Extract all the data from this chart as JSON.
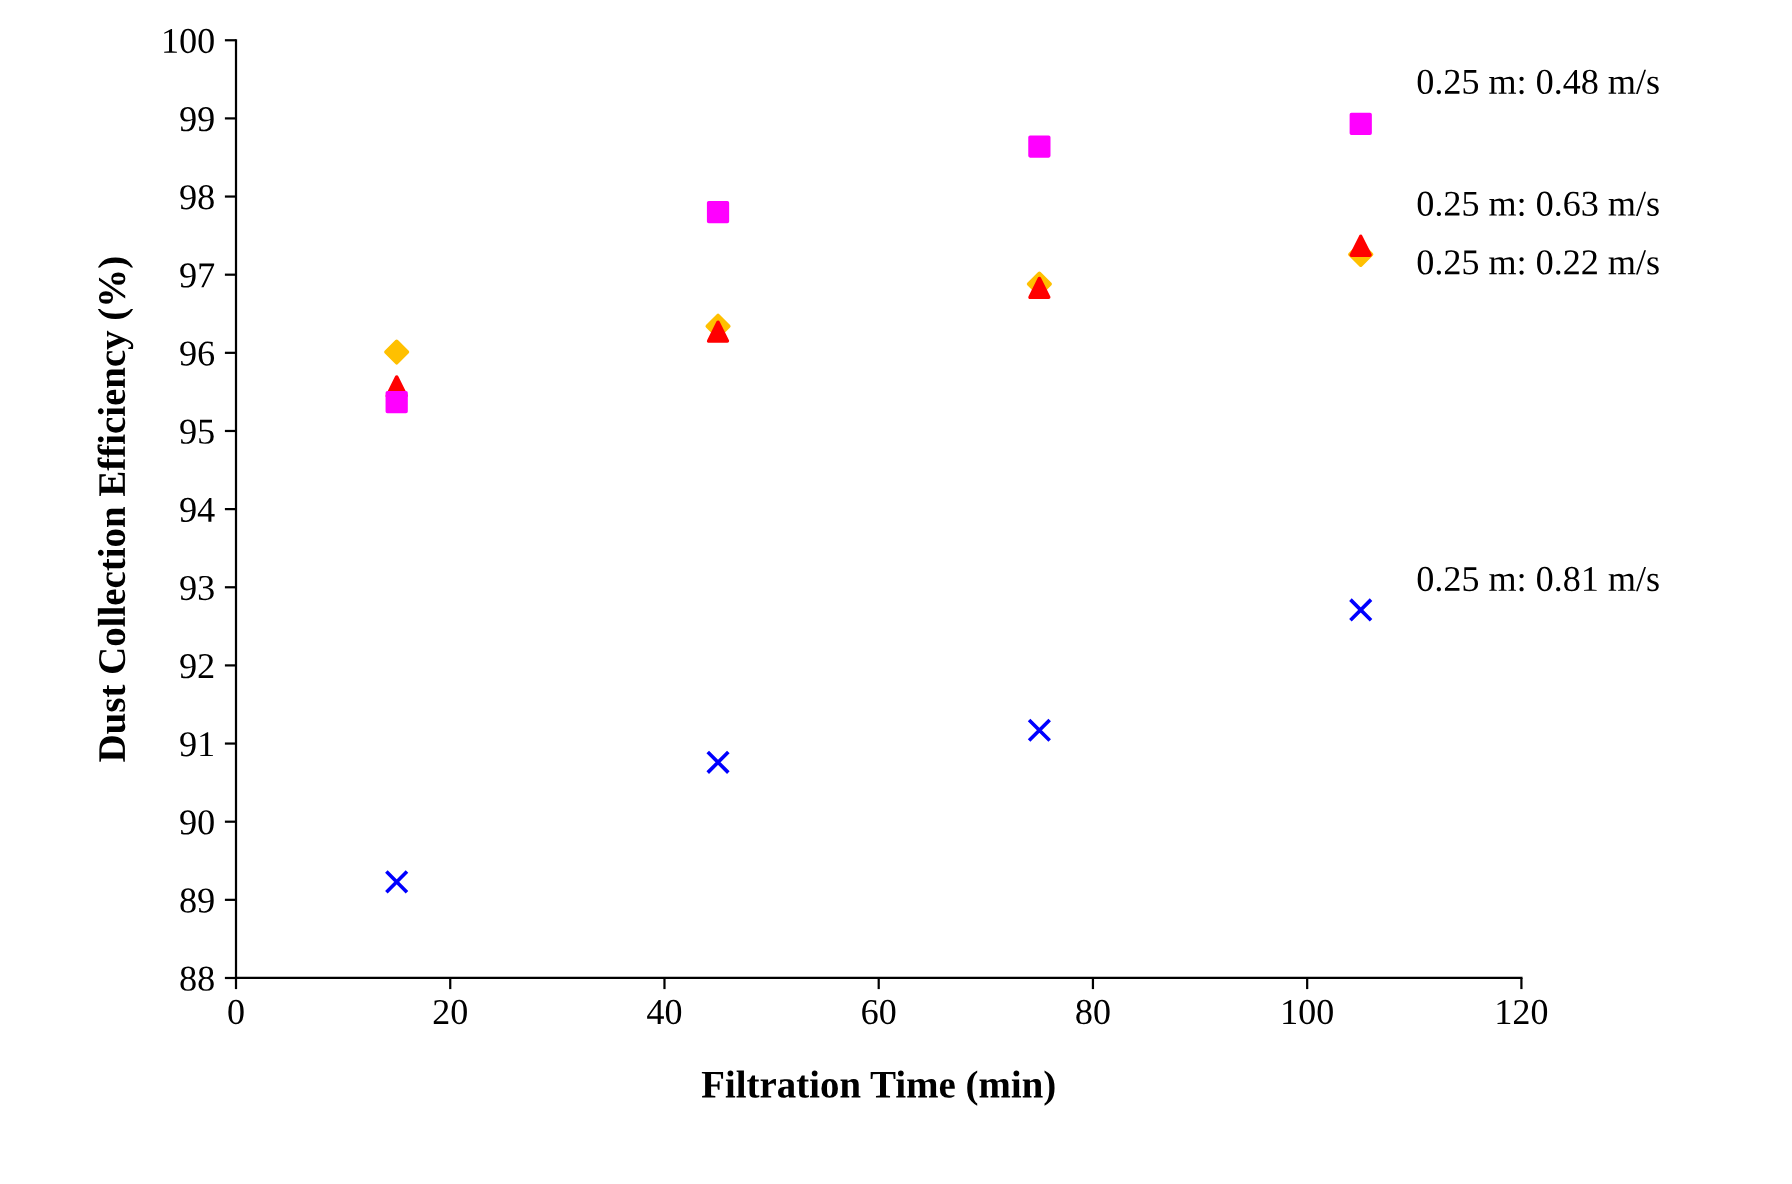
{
  "chart_data": {
    "type": "scatter",
    "xlabel": "Filtration Time (min)",
    "ylabel": "Dust Collection Efficiency (%)",
    "xlim": [
      0,
      120
    ],
    "xticks": [
      0,
      20,
      40,
      60,
      80,
      100,
      120
    ],
    "ylim": [
      88,
      100
    ],
    "yticks": [
      88,
      89,
      90,
      91,
      92,
      93,
      94,
      95,
      96,
      97,
      98,
      99,
      100
    ],
    "grid": false,
    "legend": false,
    "x": [
      15,
      45,
      75,
      105
    ],
    "series": [
      {
        "name": "0.25 m: 0.48 m/s",
        "color": "#ff00ff",
        "marker": "square",
        "values": [
          95.37,
          97.8,
          98.64,
          98.93
        ]
      },
      {
        "name": "0.25 m: 0.63 m/s",
        "color": "#ff0000",
        "marker": "triangle",
        "values": [
          95.57,
          96.27,
          96.83,
          97.37
        ]
      },
      {
        "name": "0.25 m: 0.22 m/s",
        "color": "#ffc000",
        "marker": "diamond",
        "values": [
          96.01,
          96.34,
          96.88,
          97.26
        ]
      },
      {
        "name": "0.25 m: 0.81 m/s",
        "color": "#0000ff",
        "marker": "cross",
        "values": [
          89.23,
          90.76,
          91.17,
          92.71
        ]
      }
    ]
  }
}
